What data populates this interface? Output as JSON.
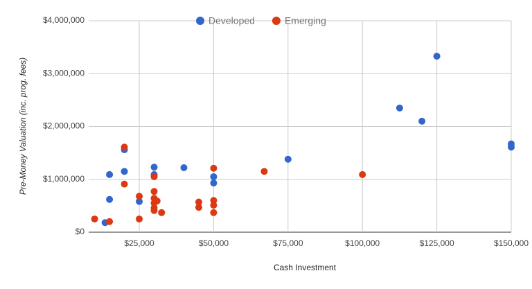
{
  "chart_data": {
    "type": "scatter",
    "x_label": "Cash Investment",
    "y_label": "Pre-Money Valuation (inc. prog. fees)",
    "xlim": [
      8000,
      150000
    ],
    "ylim": [
      0,
      4000000
    ],
    "xticks": [
      {
        "value": 25000,
        "label": "$25,000"
      },
      {
        "value": 50000,
        "label": "$50,000"
      },
      {
        "value": 75000,
        "label": "$75,000"
      },
      {
        "value": 100000,
        "label": "$100,000"
      },
      {
        "value": 125000,
        "label": "$125,000"
      },
      {
        "value": 150000,
        "label": "$150,000"
      }
    ],
    "yticks": [
      {
        "value": 0,
        "label": "$0"
      },
      {
        "value": 1000000,
        "label": "$1,000,000"
      },
      {
        "value": 2000000,
        "label": "$2,000,000"
      },
      {
        "value": 3000000,
        "label": "$3,000,000"
      },
      {
        "value": 4000000,
        "label": "$4,000,000"
      }
    ],
    "grid": true,
    "legend": "top",
    "series": [
      {
        "name": "Developed",
        "color": "#3366cc",
        "x": [
          13500,
          15000,
          15000,
          20000,
          20000,
          25000,
          30000,
          30000,
          40000,
          50000,
          50000,
          75000,
          112500,
          120000,
          125000,
          150000,
          150000
        ],
        "values": [
          180000,
          620000,
          1090000,
          1560000,
          1150000,
          580000,
          1230000,
          1090000,
          1220000,
          1050000,
          930000,
          1380000,
          2350000,
          2100000,
          3330000,
          1670000,
          1610000
        ]
      },
      {
        "name": "Emerging",
        "color": "#dc3912",
        "x": [
          10000,
          15000,
          20000,
          20000,
          25000,
          25000,
          30000,
          30000,
          30000,
          30000,
          30000,
          30000,
          31000,
          32500,
          45000,
          45000,
          50000,
          50000,
          50000,
          50000,
          67000,
          100000
        ],
        "values": [
          250000,
          200000,
          1610000,
          910000,
          680000,
          250000,
          770000,
          1050000,
          640000,
          550000,
          460000,
          410000,
          590000,
          370000,
          570000,
          470000,
          1210000,
          600000,
          510000,
          370000,
          1150000,
          1090000
        ]
      }
    ]
  }
}
